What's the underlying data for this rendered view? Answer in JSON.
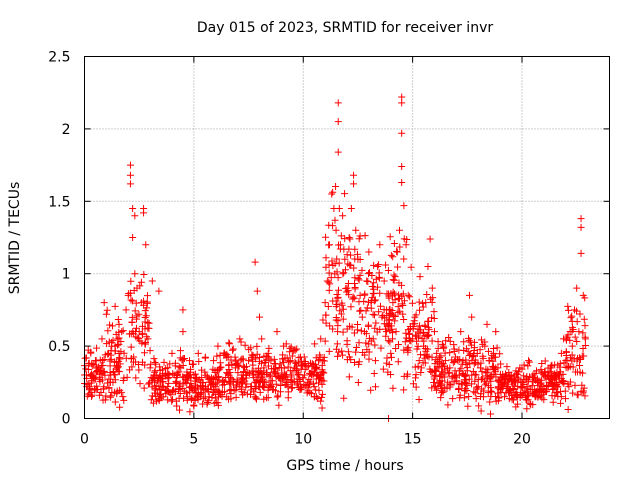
{
  "chart_data": {
    "type": "scatter",
    "title": "Day 015 of 2023, SRMTID for receiver invr",
    "xlabel": "GPS time / hours",
    "ylabel": "SRMTID / TECUs",
    "xlim": [
      0,
      24
    ],
    "ylim": [
      0,
      2.5
    ],
    "x_ticks": [
      0,
      5,
      10,
      15,
      20
    ],
    "x_tick_labels": [
      "0",
      "5",
      "10",
      "15",
      "20"
    ],
    "y_ticks": [
      0,
      0.5,
      1,
      1.5,
      2,
      2.5
    ],
    "y_tick_labels": [
      "0",
      "0.5",
      "1",
      "1.5",
      "2",
      "2.5"
    ],
    "grid": true,
    "marker": "+",
    "color": "#ff0000",
    "series": [
      {
        "name": "SRMTID",
        "points": [
          [
            0.0,
            0.3
          ],
          [
            0.1,
            0.22
          ],
          [
            0.2,
            0.38
          ],
          [
            0.3,
            0.18
          ],
          [
            0.4,
            0.28
          ],
          [
            0.5,
            0.4
          ],
          [
            0.6,
            0.2
          ],
          [
            0.7,
            0.33
          ],
          [
            0.8,
            0.55
          ],
          [
            0.9,
            0.8
          ],
          [
            1.0,
            0.72
          ],
          [
            1.1,
            0.45
          ],
          [
            1.2,
            0.3
          ],
          [
            1.3,
            0.25
          ],
          [
            1.4,
            0.5
          ],
          [
            1.5,
            0.35
          ],
          [
            1.6,
            0.42
          ],
          [
            1.7,
            0.6
          ],
          [
            1.8,
            0.28
          ],
          [
            1.9,
            0.75
          ],
          [
            2.0,
            0.85
          ],
          [
            2.1,
            1.75
          ],
          [
            2.1,
            1.68
          ],
          [
            2.1,
            1.62
          ],
          [
            2.2,
            1.45
          ],
          [
            2.2,
            1.25
          ],
          [
            2.3,
            1.4
          ],
          [
            2.3,
            1.0
          ],
          [
            2.4,
            0.9
          ],
          [
            2.5,
            0.6
          ],
          [
            2.6,
            0.8
          ],
          [
            2.7,
            1.45
          ],
          [
            2.7,
            1.42
          ],
          [
            2.8,
            1.2
          ],
          [
            2.9,
            0.55
          ],
          [
            3.0,
            0.35
          ],
          [
            3.1,
            0.95
          ],
          [
            3.2,
            0.25
          ],
          [
            3.3,
            0.3
          ],
          [
            3.4,
            0.88
          ],
          [
            3.5,
            0.2
          ],
          [
            3.6,
            0.15
          ],
          [
            3.7,
            0.3
          ],
          [
            3.8,
            0.22
          ],
          [
            3.9,
            0.18
          ],
          [
            4.0,
            0.45
          ],
          [
            4.1,
            0.3
          ],
          [
            4.2,
            0.12
          ],
          [
            4.3,
            0.2
          ],
          [
            4.4,
            0.35
          ],
          [
            4.5,
            0.75
          ],
          [
            4.5,
            0.6
          ],
          [
            4.6,
            0.25
          ],
          [
            4.7,
            0.15
          ],
          [
            4.8,
            0.4
          ],
          [
            4.9,
            0.22
          ],
          [
            5.0,
            0.3
          ],
          [
            5.1,
            0.18
          ],
          [
            5.2,
            0.45
          ],
          [
            5.3,
            0.25
          ],
          [
            5.4,
            0.1
          ],
          [
            5.5,
            0.32
          ],
          [
            5.6,
            0.2
          ],
          [
            5.7,
            0.15
          ],
          [
            5.8,
            0.28
          ],
          [
            5.9,
            0.4
          ],
          [
            6.0,
            0.22
          ],
          [
            6.1,
            0.5
          ],
          [
            6.2,
            0.35
          ],
          [
            6.3,
            0.18
          ],
          [
            6.4,
            0.25
          ],
          [
            6.5,
            0.42
          ],
          [
            6.6,
            0.3
          ],
          [
            6.7,
            0.2
          ],
          [
            6.8,
            0.48
          ],
          [
            6.9,
            0.35
          ],
          [
            7.0,
            0.25
          ],
          [
            7.1,
            0.55
          ],
          [
            7.2,
            0.3
          ],
          [
            7.3,
            0.18
          ],
          [
            7.4,
            0.28
          ],
          [
            7.5,
            0.4
          ],
          [
            7.6,
            0.22
          ],
          [
            7.7,
            0.3
          ],
          [
            7.8,
            1.08
          ],
          [
            7.9,
            0.88
          ],
          [
            8.0,
            0.7
          ],
          [
            8.1,
            0.55
          ],
          [
            8.2,
            0.35
          ],
          [
            8.3,
            0.25
          ],
          [
            8.4,
            0.45
          ],
          [
            8.5,
            0.3
          ],
          [
            8.6,
            0.2
          ],
          [
            8.7,
            0.38
          ],
          [
            8.8,
            0.6
          ],
          [
            8.9,
            0.28
          ],
          [
            9.0,
            0.35
          ],
          [
            9.1,
            0.5
          ],
          [
            9.2,
            0.3
          ],
          [
            9.3,
            0.22
          ],
          [
            9.4,
            0.4
          ],
          [
            9.5,
            0.25
          ],
          [
            9.6,
            0.35
          ],
          [
            9.7,
            0.48
          ],
          [
            9.8,
            0.3
          ],
          [
            9.9,
            0.2
          ],
          [
            10.0,
            0.28
          ],
          [
            10.1,
            0.38
          ],
          [
            10.2,
            0.25
          ],
          [
            10.3,
            0.18
          ],
          [
            10.4,
            0.3
          ],
          [
            10.5,
            0.22
          ],
          [
            10.6,
            0.15
          ],
          [
            10.7,
            0.4
          ],
          [
            10.8,
            0.55
          ],
          [
            10.9,
            0.68
          ],
          [
            11.0,
            0.8
          ],
          [
            11.1,
            0.95
          ],
          [
            11.2,
            1.2
          ],
          [
            11.3,
            1.55
          ],
          [
            11.4,
            1.45
          ],
          [
            11.5,
            1.3
          ],
          [
            11.6,
            2.18
          ],
          [
            11.6,
            2.05
          ],
          [
            11.6,
            1.84
          ],
          [
            11.7,
            1.2
          ],
          [
            11.8,
            1.4
          ],
          [
            11.9,
            1.1
          ],
          [
            12.0,
            0.9
          ],
          [
            12.1,
            1.25
          ],
          [
            12.2,
            1.45
          ],
          [
            12.3,
            1.68
          ],
          [
            12.3,
            1.62
          ],
          [
            12.4,
            1.3
          ],
          [
            12.5,
            1.1
          ],
          [
            12.6,
            0.85
          ],
          [
            12.7,
            0.7
          ],
          [
            12.8,
            0.6
          ],
          [
            12.9,
            0.95
          ],
          [
            13.0,
            1.15
          ],
          [
            13.1,
            0.8
          ],
          [
            13.2,
            0.55
          ],
          [
            13.3,
            0.4
          ],
          [
            13.4,
            1.05
          ],
          [
            13.5,
            1.2
          ],
          [
            13.6,
            0.7
          ],
          [
            13.7,
            0.95
          ],
          [
            13.8,
            0.6
          ],
          [
            13.9,
            0.0
          ],
          [
            14.0,
            0.45
          ],
          [
            14.1,
            0.8
          ],
          [
            14.2,
            0.98
          ],
          [
            14.3,
            1.15
          ],
          [
            14.4,
            1.3
          ],
          [
            14.5,
            2.22
          ],
          [
            14.5,
            2.18
          ],
          [
            14.5,
            1.97
          ],
          [
            14.5,
            1.74
          ],
          [
            14.5,
            1.63
          ],
          [
            14.6,
            1.47
          ],
          [
            14.7,
            1.2
          ],
          [
            14.8,
            0.85
          ],
          [
            14.9,
            0.62
          ],
          [
            15.0,
            0.55
          ],
          [
            15.1,
            0.7
          ],
          [
            15.2,
            0.48
          ],
          [
            15.3,
            0.4
          ],
          [
            15.4,
            0.35
          ],
          [
            15.5,
            0.5
          ],
          [
            15.6,
            0.8
          ],
          [
            15.7,
            1.05
          ],
          [
            15.8,
            1.24
          ],
          [
            15.9,
            0.9
          ],
          [
            16.0,
            0.6
          ],
          [
            16.1,
            0.45
          ],
          [
            16.2,
            0.35
          ],
          [
            16.3,
            0.3
          ],
          [
            16.4,
            0.5
          ],
          [
            16.5,
            0.4
          ],
          [
            16.6,
            0.25
          ],
          [
            16.7,
            0.35
          ],
          [
            16.8,
            0.28
          ],
          [
            16.9,
            0.48
          ],
          [
            17.0,
            0.3
          ],
          [
            17.1,
            0.2
          ],
          [
            17.2,
            0.6
          ],
          [
            17.3,
            0.4
          ],
          [
            17.4,
            0.25
          ],
          [
            17.5,
            0.33
          ],
          [
            17.6,
            0.85
          ],
          [
            17.7,
            0.7
          ],
          [
            17.8,
            0.45
          ],
          [
            17.9,
            0.3
          ],
          [
            18.0,
            0.22
          ],
          [
            18.1,
            0.35
          ],
          [
            18.2,
            0.28
          ],
          [
            18.3,
            0.5
          ],
          [
            18.4,
            0.65
          ],
          [
            18.5,
            0.4
          ],
          [
            18.6,
            0.3
          ],
          [
            18.7,
            0.45
          ],
          [
            18.8,
            0.6
          ],
          [
            18.9,
            0.35
          ],
          [
            19.0,
            0.2
          ],
          [
            19.1,
            0.28
          ],
          [
            19.2,
            0.15
          ],
          [
            19.3,
            0.22
          ],
          [
            19.4,
            0.18
          ],
          [
            19.5,
            0.3
          ],
          [
            19.6,
            0.2
          ],
          [
            19.7,
            0.25
          ],
          [
            19.8,
            0.15
          ],
          [
            19.9,
            0.35
          ],
          [
            20.0,
            0.22
          ],
          [
            20.1,
            0.18
          ],
          [
            20.2,
            0.28
          ],
          [
            20.3,
            0.4
          ],
          [
            20.4,
            0.2
          ],
          [
            20.5,
            0.3
          ],
          [
            20.6,
            0.15
          ],
          [
            20.7,
            0.25
          ],
          [
            20.8,
            0.2
          ],
          [
            20.9,
            0.32
          ],
          [
            21.0,
            0.18
          ],
          [
            21.1,
            0.28
          ],
          [
            21.2,
            0.22
          ],
          [
            21.3,
            0.35
          ],
          [
            21.4,
            0.2
          ],
          [
            21.5,
            0.25
          ],
          [
            21.6,
            0.18
          ],
          [
            21.7,
            0.3
          ],
          [
            21.8,
            0.45
          ],
          [
            21.9,
            0.55
          ],
          [
            22.0,
            0.4
          ],
          [
            22.1,
            0.35
          ],
          [
            22.2,
            0.6
          ],
          [
            22.3,
            0.5
          ],
          [
            22.4,
            0.75
          ],
          [
            22.5,
            0.9
          ],
          [
            22.6,
            0.6
          ],
          [
            22.7,
            1.38
          ],
          [
            22.7,
            1.32
          ],
          [
            22.7,
            1.14
          ],
          [
            22.8,
            0.85
          ],
          [
            22.9,
            0.55
          ]
        ],
        "cloud_bands": [
          [
            0,
            1,
            0.3,
            0.15
          ],
          [
            1,
            2,
            0.4,
            0.22
          ],
          [
            2,
            3,
            0.6,
            0.3
          ],
          [
            3,
            4,
            0.25,
            0.12
          ],
          [
            4,
            5,
            0.25,
            0.15
          ],
          [
            5,
            6,
            0.22,
            0.12
          ],
          [
            6,
            7,
            0.3,
            0.15
          ],
          [
            7,
            8,
            0.32,
            0.15
          ],
          [
            8,
            9,
            0.3,
            0.15
          ],
          [
            9,
            10,
            0.32,
            0.14
          ],
          [
            10,
            11,
            0.3,
            0.15
          ],
          [
            11,
            12,
            0.9,
            0.45
          ],
          [
            12,
            13,
            0.8,
            0.45
          ],
          [
            13,
            14,
            0.7,
            0.35
          ],
          [
            14,
            15,
            0.7,
            0.35
          ],
          [
            15,
            16,
            0.55,
            0.3
          ],
          [
            16,
            17,
            0.35,
            0.15
          ],
          [
            17,
            18,
            0.35,
            0.2
          ],
          [
            18,
            19,
            0.3,
            0.18
          ],
          [
            19,
            20,
            0.22,
            0.1
          ],
          [
            20,
            21,
            0.22,
            0.1
          ],
          [
            21,
            22,
            0.25,
            0.12
          ],
          [
            22,
            22.9,
            0.45,
            0.25
          ]
        ]
      }
    ]
  }
}
